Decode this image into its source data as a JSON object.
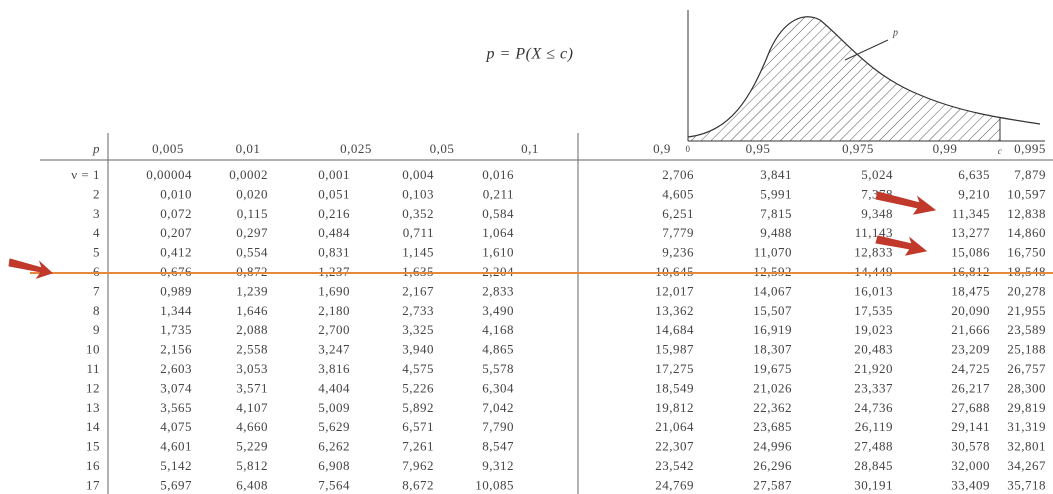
{
  "formula": "p = P(X ≤ c)",
  "graph": {
    "area_label": "p",
    "origin_label": "0",
    "c_label": "c"
  },
  "table": {
    "header": [
      "p",
      "0,005",
      "0,01",
      "0,025",
      "0,05",
      "0,1",
      "0,9",
      "0,95",
      "0,975",
      "0,99",
      "0,995"
    ],
    "rows": [
      [
        "ν = 1",
        "0,00004",
        "0,0002",
        "0,001",
        "0,004",
        "0,016",
        "2,706",
        "3,841",
        "5,024",
        "6,635",
        "7,879"
      ],
      [
        "2",
        "0,010",
        "0,020",
        "0,051",
        "0,103",
        "0,211",
        "4,605",
        "5,991",
        "7,378",
        "9,210",
        "10,597"
      ],
      [
        "3",
        "0,072",
        "0,115",
        "0,216",
        "0,352",
        "0,584",
        "6,251",
        "7,815",
        "9,348",
        "11,345",
        "12,838"
      ],
      [
        "4",
        "0,207",
        "0,297",
        "0,484",
        "0,711",
        "1,064",
        "7,779",
        "9,488",
        "11,143",
        "13,277",
        "14,860"
      ],
      [
        "5",
        "0,412",
        "0,554",
        "0,831",
        "1,145",
        "1,610",
        "9,236",
        "11,070",
        "12,833",
        "15,086",
        "16,750"
      ],
      [
        "6",
        "0,676",
        "0,872",
        "1,237",
        "1,635",
        "2,204",
        "10,645",
        "12,592",
        "14,449",
        "16,812",
        "18,548"
      ],
      [
        "7",
        "0,989",
        "1,239",
        "1,690",
        "2,167",
        "2,833",
        "12,017",
        "14,067",
        "16,013",
        "18,475",
        "20,278"
      ],
      [
        "8",
        "1,344",
        "1,646",
        "2,180",
        "2,733",
        "3,490",
        "13,362",
        "15,507",
        "17,535",
        "20,090",
        "21,955"
      ],
      [
        "9",
        "1,735",
        "2,088",
        "2,700",
        "3,325",
        "4,168",
        "14,684",
        "16,919",
        "19,023",
        "21,666",
        "23,589"
      ],
      [
        "10",
        "2,156",
        "2,558",
        "3,247",
        "3,940",
        "4,865",
        "15,987",
        "18,307",
        "20,483",
        "23,209",
        "25,188"
      ],
      [
        "11",
        "2,603",
        "3,053",
        "3,816",
        "4,575",
        "5,578",
        "17,275",
        "19,675",
        "21,920",
        "24,725",
        "26,757"
      ],
      [
        "12",
        "3,074",
        "3,571",
        "4,404",
        "5,226",
        "6,304",
        "18,549",
        "21,026",
        "23,337",
        "26,217",
        "28,300"
      ],
      [
        "13",
        "3,565",
        "4,107",
        "5,009",
        "5,892",
        "7,042",
        "19,812",
        "22,362",
        "24,736",
        "27,688",
        "29,819"
      ],
      [
        "14",
        "4,075",
        "4,660",
        "5,629",
        "6,571",
        "7,790",
        "21,064",
        "23,685",
        "26,119",
        "29,141",
        "31,319"
      ],
      [
        "15",
        "4,601",
        "5,229",
        "6,262",
        "7,261",
        "8,547",
        "22,307",
        "24,996",
        "27,488",
        "30,578",
        "32,801"
      ],
      [
        "16",
        "5,142",
        "5,812",
        "6,908",
        "7,962",
        "9,312",
        "23,542",
        "26,296",
        "28,845",
        "32,000",
        "34,267"
      ],
      [
        "17",
        "5,697",
        "6,408",
        "7,564",
        "8,672",
        "10,085",
        "24,769",
        "27,587",
        "30,191",
        "33,409",
        "35,718"
      ]
    ]
  }
}
